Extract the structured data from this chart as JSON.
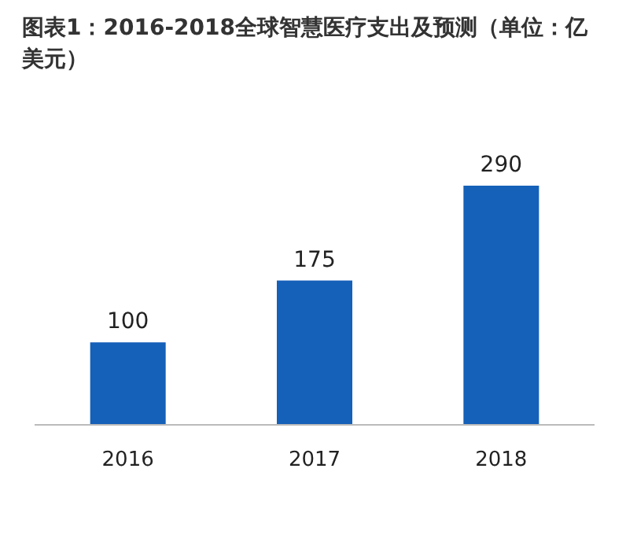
{
  "chart_data": {
    "type": "bar",
    "title": "图表1：2016-2018全球智慧医疗支出及预测（单位：亿美元）",
    "categories": [
      "2016",
      "2017",
      "2018"
    ],
    "values": [
      100,
      175,
      290
    ],
    "color": "#1560b8",
    "data_labels": true
  }
}
